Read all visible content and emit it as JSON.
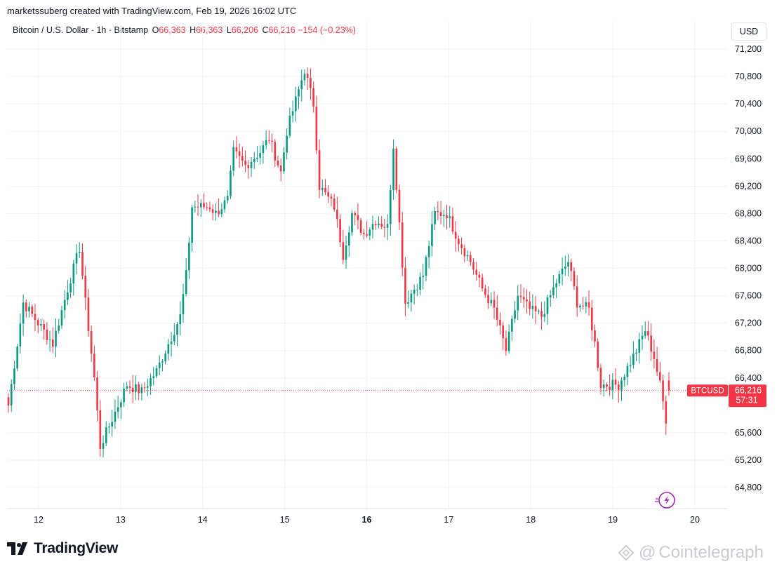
{
  "header": {
    "text": "marketssuberg created with TradingView.com, Feb 19, 2026 16:02 UTC"
  },
  "legend": {
    "symbol": "Bitcoin / U.S. Dollar · 1h · Bitstamp",
    "o_label": "O",
    "o_value": "66,363",
    "h_label": "H",
    "h_value": "66,363",
    "l_label": "L",
    "l_value": "66,206",
    "c_label": "C",
    "c_value": "66,216",
    "change": "−154 (−0.23%)"
  },
  "currency": "USD",
  "price_badge": {
    "ticker": "BTCUSD",
    "price": "66,216",
    "countdown": "57:31"
  },
  "footer": {
    "brand": "TradingView",
    "watermark": "Cointelegraph"
  },
  "colors": {
    "up": "#089981",
    "down": "#f23645",
    "grid": "#f0f3fa",
    "text": "#131722"
  },
  "chart_data": {
    "type": "candlestick",
    "symbol": "BTCUSD",
    "interval": "1h",
    "y_ticks": [
      71200,
      70800,
      70400,
      70000,
      69600,
      69200,
      68800,
      68400,
      68000,
      67600,
      67200,
      66800,
      66400,
      65600,
      65200,
      64800
    ],
    "y_tick_labels": [
      "71,200",
      "70,800",
      "70,400",
      "70,000",
      "69,600",
      "69,200",
      "68,800",
      "68,400",
      "68,000",
      "67,600",
      "67,200",
      "66,800",
      "66,400",
      "65,600",
      "65,200",
      "64,800"
    ],
    "x_ticks": [
      12,
      13,
      14,
      15,
      16,
      17,
      18,
      19,
      20
    ],
    "x_tick_labels": [
      "12",
      "13",
      "14",
      "15",
      "16",
      "17",
      "18",
      "19",
      "20"
    ],
    "x_bold_tick": "16",
    "x_range": [
      11.53,
      20.45
    ],
    "y_range": [
      64550,
      71300
    ],
    "last_price": 66216,
    "grid": true,
    "anchors": [
      [
        0,
        66000
      ],
      [
        5,
        67500
      ],
      [
        10,
        67200
      ],
      [
        15,
        66900
      ],
      [
        20,
        67700
      ],
      [
        24,
        68300
      ],
      [
        26,
        67500
      ],
      [
        29,
        66400
      ],
      [
        31,
        65400
      ],
      [
        35,
        65800
      ],
      [
        40,
        66300
      ],
      [
        45,
        66200
      ],
      [
        50,
        66500
      ],
      [
        55,
        67000
      ],
      [
        58,
        67300
      ],
      [
        60,
        67900
      ],
      [
        62,
        68900
      ],
      [
        68,
        68900
      ],
      [
        70,
        68800
      ],
      [
        74,
        69000
      ],
      [
        76,
        69700
      ],
      [
        80,
        69500
      ],
      [
        85,
        69700
      ],
      [
        88,
        69900
      ],
      [
        92,
        69400
      ],
      [
        94,
        70000
      ],
      [
        98,
        70600
      ],
      [
        100,
        70900
      ],
      [
        103,
        70400
      ],
      [
        105,
        69200
      ],
      [
        110,
        68900
      ],
      [
        113,
        68200
      ],
      [
        116,
        68800
      ],
      [
        120,
        68500
      ],
      [
        124,
        68700
      ],
      [
        128,
        68600
      ],
      [
        130,
        69800
      ],
      [
        134,
        67500
      ],
      [
        140,
        67900
      ],
      [
        144,
        68800
      ],
      [
        148,
        68800
      ],
      [
        152,
        68400
      ],
      [
        156,
        68100
      ],
      [
        160,
        67700
      ],
      [
        164,
        67400
      ],
      [
        168,
        66800
      ],
      [
        172,
        67600
      ],
      [
        176,
        67400
      ],
      [
        180,
        67300
      ],
      [
        185,
        67800
      ],
      [
        189,
        68100
      ],
      [
        192,
        67500
      ],
      [
        196,
        67400
      ],
      [
        198,
        66900
      ],
      [
        200,
        66300
      ],
      [
        206,
        66300
      ],
      [
        212,
        66800
      ],
      [
        215,
        67100
      ],
      [
        218,
        66700
      ],
      [
        220,
        66300
      ],
      [
        222,
        65800
      ],
      [
        223,
        66216
      ]
    ]
  }
}
